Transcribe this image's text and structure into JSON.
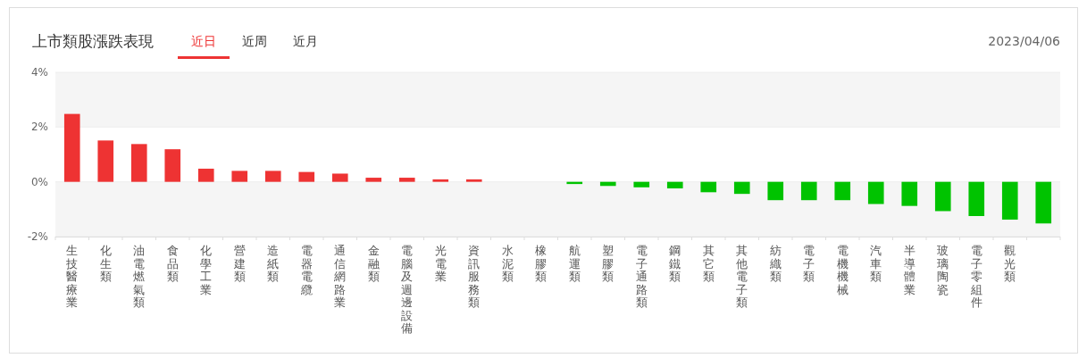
{
  "chart_data": {
    "type": "bar",
    "title": "上市類股漲跌表現",
    "subtitle": "2023/04/06",
    "annotations": [
      "近日",
      "近周",
      "近月"
    ],
    "categories": [
      "生技醫療業",
      "化生類",
      "油電燃氣類",
      "食品類",
      "化學工業",
      "營建類",
      "造紙類",
      "電器電纜",
      "通信網路業",
      "金融類",
      "電腦及週邊設備",
      "光電業",
      "資訊服務類",
      "水泥類",
      "橡膠類",
      "航運類",
      "塑膠類",
      "電子通路類",
      "鋼鐵類",
      "其它類",
      "其他電子類",
      "紡織類",
      "電子類",
      "電機機械",
      "汽車類",
      "半導體業",
      "玻璃陶瓷",
      "電子零組件",
      "觀光類",
      null
    ],
    "values": [
      2.48,
      1.51,
      1.38,
      1.19,
      0.48,
      0.4,
      0.4,
      0.36,
      0.3,
      0.15,
      0.15,
      0.09,
      0.09,
      0,
      0,
      -0.08,
      -0.15,
      -0.2,
      -0.24,
      -0.38,
      -0.44,
      -0.67,
      -0.67,
      -0.67,
      -0.81,
      -0.88,
      -1.07,
      -1.25,
      -1.38,
      -1.52
    ],
    "colors": [
      "#ee3333",
      "#ee3333",
      "#ee3333",
      "#ee3333",
      "#ee3333",
      "#ee3333",
      "#ee3333",
      "#ee3333",
      "#ee3333",
      "#ee3333",
      "#ee3333",
      "#ee3333",
      "#ee3333",
      "#ee3333",
      "#ee3333",
      "#00c300",
      "#00c300",
      "#00c300",
      "#00c300",
      "#00c300",
      "#00c300",
      "#00c300",
      "#00c300",
      "#00c300",
      "#00c300",
      "#00c300",
      "#00c300",
      "#00c300",
      "#00c300",
      "#00c300"
    ],
    "ylim": [
      -2,
      4
    ],
    "yticks": [
      {
        "value": -2,
        "label": "-2%"
      },
      {
        "value": 0,
        "label": "0%"
      },
      {
        "value": 2,
        "label": "2%"
      },
      {
        "value": 4,
        "label": "4%"
      }
    ],
    "bands": [
      {
        "axis": "y",
        "from": 2,
        "to": 4,
        "color": "#f5f5f5"
      },
      {
        "axis": "y",
        "from": -2,
        "to": 0,
        "color": "#f5f5f5"
      }
    ],
    "grid": "y"
  }
}
